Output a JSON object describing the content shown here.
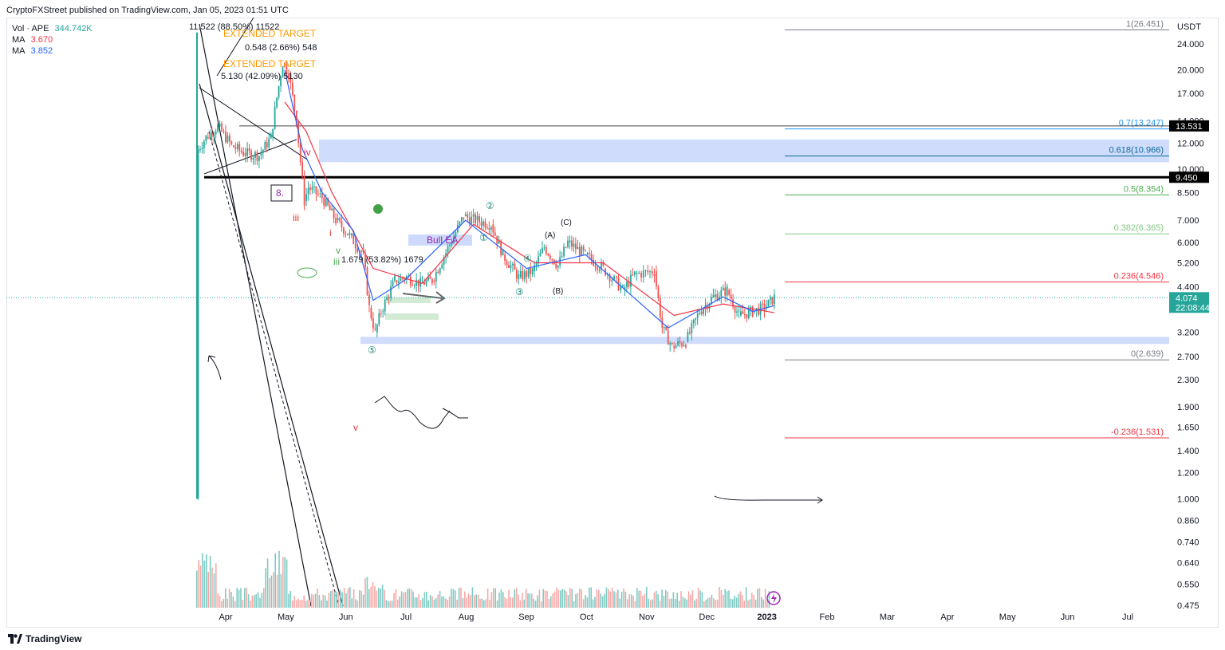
{
  "header": {
    "text": "CryptoFXStreet published on TradingView.com, Jan 05, 2023 01:51 UTC"
  },
  "legend": {
    "vol_label": "Vol · APE",
    "vol_value": "344.742K",
    "vol_color": "#26a69a",
    "ma1_label": "MA",
    "ma1_value": "3.670",
    "ma1_color": "#f23645",
    "ma2_label": "MA",
    "ma2_value": "3.852",
    "ma2_color": "#2962ff"
  },
  "footer": {
    "brand": "TradingView"
  },
  "chart_data": {
    "type": "candlestick",
    "symbol": "APE",
    "currency_label": "USDT",
    "y_scale": "log",
    "ylim": [
      0.45,
      30
    ],
    "y_ticks": [
      {
        "value": 24.0,
        "label": "24.000"
      },
      {
        "value": 20.0,
        "label": "20.000"
      },
      {
        "value": 17.0,
        "label": "17.000"
      },
      {
        "value": 14.0,
        "label": "14.000"
      },
      {
        "value": 12.0,
        "label": "12.000"
      },
      {
        "value": 10.0,
        "label": "10.000"
      },
      {
        "value": 8.5,
        "label": "8.500"
      },
      {
        "value": 7.0,
        "label": "7.000"
      },
      {
        "value": 6.0,
        "label": "6.000"
      },
      {
        "value": 5.2,
        "label": "5.200"
      },
      {
        "value": 4.4,
        "label": "4.400"
      },
      {
        "value": 3.2,
        "label": "3.200"
      },
      {
        "value": 2.7,
        "label": "2.700"
      },
      {
        "value": 2.3,
        "label": "2.300"
      },
      {
        "value": 1.9,
        "label": "1.900"
      },
      {
        "value": 1.65,
        "label": "1.650"
      },
      {
        "value": 1.4,
        "label": "1.400"
      },
      {
        "value": 1.2,
        "label": "1.200"
      },
      {
        "value": 1.0,
        "label": "1.000"
      },
      {
        "value": 0.86,
        "label": "0.860"
      },
      {
        "value": 0.74,
        "label": "0.740"
      },
      {
        "value": 0.64,
        "label": "0.640"
      },
      {
        "value": 0.55,
        "label": "0.550"
      },
      {
        "value": 0.475,
        "label": "0.475"
      }
    ],
    "x_ticks": [
      "Apr",
      "May",
      "Jun",
      "Jul",
      "Aug",
      "Sep",
      "Oct",
      "Nov",
      "Dec",
      "2023",
      "Feb",
      "Mar",
      "Apr",
      "May",
      "Jun",
      "Jul"
    ],
    "price_badges": [
      {
        "value": 13.531,
        "label": "13.531",
        "bg": "#000000",
        "fg": "#ffffff"
      },
      {
        "value": 9.45,
        "label": "9.450",
        "bg": "#000000",
        "fg": "#ffffff"
      },
      {
        "value": 4.074,
        "label": "4.074",
        "countdown": "22:08:44",
        "bg": "#26a69a",
        "fg": "#ffffff"
      }
    ],
    "fib_levels": [
      {
        "value": 26.451,
        "label": "1(26.451)",
        "color": "#787b86"
      },
      {
        "value": 13.247,
        "label": "0.7(13.247)",
        "color": "#2196f3"
      },
      {
        "value": 10.966,
        "label": "0.618(10.966)",
        "color": "#0a6a9a"
      },
      {
        "value": 8.354,
        "label": "0.5(8.354)",
        "color": "#4caf50"
      },
      {
        "value": 6.365,
        "label": "0.382(6.365)",
        "color": "#81c784"
      },
      {
        "value": 4.546,
        "label": "0.236(4.546)",
        "color": "#f23645"
      },
      {
        "value": 2.639,
        "label": "0(2.639)",
        "color": "#787b86"
      },
      {
        "value": 1.531,
        "label": "-0.236(1.531)",
        "color": "#f23645"
      }
    ],
    "horizontal_lines": [
      {
        "value": 13.531,
        "color": "#444444"
      },
      {
        "value": 9.45,
        "color": "#000000"
      }
    ],
    "zones": [
      {
        "low": 10.5,
        "high": 12.3,
        "color": "#c8d6fb"
      },
      {
        "low": 2.95,
        "high": 3.1,
        "color": "#c8d6fb"
      }
    ],
    "close_series": [
      {
        "date": "2022-03-17",
        "close": 1.0
      },
      {
        "date": "2022-03-18",
        "close": 11.5
      },
      {
        "date": "2022-03-22",
        "close": 12.5
      },
      {
        "date": "2022-03-28",
        "close": 13.5
      },
      {
        "date": "2022-04-04",
        "close": 11.8
      },
      {
        "date": "2022-04-10",
        "close": 11.2
      },
      {
        "date": "2022-04-18",
        "close": 11.0
      },
      {
        "date": "2022-04-24",
        "close": 12.5
      },
      {
        "date": "2022-04-27",
        "close": 16.5
      },
      {
        "date": "2022-04-30",
        "close": 21.0
      },
      {
        "date": "2022-05-03",
        "close": 19.5
      },
      {
        "date": "2022-05-07",
        "close": 14.0
      },
      {
        "date": "2022-05-11",
        "close": 8.0
      },
      {
        "date": "2022-05-13",
        "close": 8.8
      },
      {
        "date": "2022-05-20",
        "close": 8.2
      },
      {
        "date": "2022-05-27",
        "close": 7.0
      },
      {
        "date": "2022-06-03",
        "close": 6.3
      },
      {
        "date": "2022-06-10",
        "close": 5.5
      },
      {
        "date": "2022-06-13",
        "close": 3.8
      },
      {
        "date": "2022-06-16",
        "close": 3.2
      },
      {
        "date": "2022-06-19",
        "close": 3.7
      },
      {
        "date": "2022-06-26",
        "close": 4.6
      },
      {
        "date": "2022-07-02",
        "close": 4.7
      },
      {
        "date": "2022-07-09",
        "close": 4.5
      },
      {
        "date": "2022-07-15",
        "close": 4.6
      },
      {
        "date": "2022-07-22",
        "close": 5.6
      },
      {
        "date": "2022-07-31",
        "close": 7.2
      },
      {
        "date": "2022-08-06",
        "close": 7.0
      },
      {
        "date": "2022-08-14",
        "close": 6.8
      },
      {
        "date": "2022-08-20",
        "close": 5.5
      },
      {
        "date": "2022-08-28",
        "close": 4.7
      },
      {
        "date": "2022-09-04",
        "close": 4.9
      },
      {
        "date": "2022-09-10",
        "close": 5.8
      },
      {
        "date": "2022-09-17",
        "close": 5.1
      },
      {
        "date": "2022-09-22",
        "close": 6.0
      },
      {
        "date": "2022-10-01",
        "close": 5.5
      },
      {
        "date": "2022-10-10",
        "close": 5.0
      },
      {
        "date": "2022-10-20",
        "close": 4.3
      },
      {
        "date": "2022-10-26",
        "close": 4.8
      },
      {
        "date": "2022-11-05",
        "close": 4.9
      },
      {
        "date": "2022-11-09",
        "close": 3.3
      },
      {
        "date": "2022-11-14",
        "close": 2.9
      },
      {
        "date": "2022-11-21",
        "close": 3.0
      },
      {
        "date": "2022-11-28",
        "close": 3.7
      },
      {
        "date": "2022-12-05",
        "close": 4.1
      },
      {
        "date": "2022-12-12",
        "close": 4.3
      },
      {
        "date": "2022-12-18",
        "close": 3.6
      },
      {
        "date": "2022-12-25",
        "close": 3.7
      },
      {
        "date": "2022-12-31",
        "close": 3.8
      },
      {
        "date": "2023-01-05",
        "close": 4.074
      }
    ],
    "ma_fast": [
      {
        "date": "2022-05-01",
        "value": 20.0
      },
      {
        "date": "2022-05-10",
        "value": 11.5
      },
      {
        "date": "2022-05-20",
        "value": 8.5
      },
      {
        "date": "2022-06-05",
        "value": 6.5
      },
      {
        "date": "2022-06-15",
        "value": 4.0
      },
      {
        "date": "2022-07-01",
        "value": 4.6
      },
      {
        "date": "2022-08-01",
        "value": 7.0
      },
      {
        "date": "2022-09-01",
        "value": 5.0
      },
      {
        "date": "2022-10-01",
        "value": 5.5
      },
      {
        "date": "2022-11-12",
        "value": 3.3
      },
      {
        "date": "2022-12-10",
        "value": 4.1
      },
      {
        "date": "2022-12-25",
        "value": 3.7
      },
      {
        "date": "2023-01-05",
        "value": 3.852
      }
    ],
    "ma_slow": [
      {
        "date": "2022-05-01",
        "value": 16.0
      },
      {
        "date": "2022-05-12",
        "value": 13.0
      },
      {
        "date": "2022-05-25",
        "value": 8.5
      },
      {
        "date": "2022-06-15",
        "value": 5.0
      },
      {
        "date": "2022-07-10",
        "value": 4.5
      },
      {
        "date": "2022-08-05",
        "value": 6.8
      },
      {
        "date": "2022-09-05",
        "value": 5.2
      },
      {
        "date": "2022-10-10",
        "value": 5.2
      },
      {
        "date": "2022-11-15",
        "value": 3.6
      },
      {
        "date": "2022-12-10",
        "value": 3.9
      },
      {
        "date": "2023-01-05",
        "value": 3.67
      }
    ],
    "annotations": [
      {
        "text": "11.522 (88.50%) 11522",
        "color": "#131722"
      },
      {
        "text": "EXTENDED TARGET",
        "color": "#ff9800"
      },
      {
        "text": "0.548 (2.66%) 548",
        "color": "#131722"
      },
      {
        "text": "EXTENDED TARGET",
        "color": "#ff9800"
      },
      {
        "text": "5.130 (42.09%) 5130",
        "color": "#131722"
      },
      {
        "text": "8.",
        "color": "#9c27b0"
      },
      {
        "text": "iv",
        "color": "#e91e63"
      },
      {
        "text": "iii",
        "color": "#e53935"
      },
      {
        "text": "v",
        "color": "#e53935"
      },
      {
        "text": "i",
        "color": "#e53935"
      },
      {
        "text": "v",
        "color": "#4caf50"
      },
      {
        "text": "iii",
        "color": "#4caf50"
      },
      {
        "text": "1.679 (53.82%) 1679",
        "color": "#131722"
      },
      {
        "text": "Bull EA",
        "color": "#9c27b0"
      },
      {
        "text": "(A)",
        "color": "#131722"
      },
      {
        "text": "(B)",
        "color": "#131722"
      },
      {
        "text": "(C)",
        "color": "#131722"
      },
      {
        "text": "①",
        "color": "#1b8a7a"
      },
      {
        "text": "②",
        "color": "#1b8a7a"
      },
      {
        "text": "③",
        "color": "#1b8a7a"
      },
      {
        "text": "④",
        "color": "#1b8a7a"
      },
      {
        "text": "⑤",
        "color": "#1b8a7a"
      },
      {
        "text": "③⑤",
        "color": "#4caf50"
      }
    ]
  }
}
